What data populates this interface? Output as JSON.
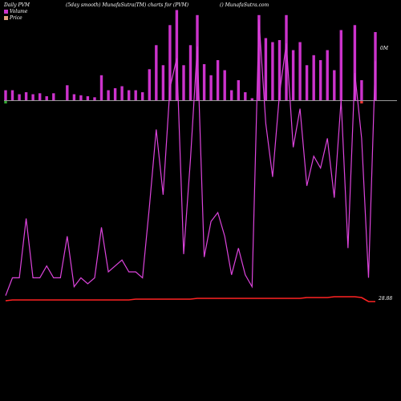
{
  "header": {
    "title": "Daily PVM",
    "subtitle": "(5day smooth) MunafaSutra(TM) charts for (PVM)",
    "site": "() MunafaSutra.com"
  },
  "legend": [
    {
      "label": "Volume",
      "color": "#cc33cc"
    },
    {
      "label": "Price",
      "color": "#e0a080"
    }
  ],
  "colors": {
    "volume_bar": "#cc33cc",
    "volume_line": "#dd44dd",
    "price_line": "#ff2222",
    "up_bar": "#33aa33",
    "down_bar": "#ee3333",
    "baseline": "#cccccc",
    "background": "#000000"
  },
  "chart_data": {
    "type": "bar",
    "volume_axis_label": "0M",
    "price_axis_label": "28.88",
    "bars": [
      10,
      10,
      6,
      8,
      6,
      7,
      4,
      7,
      0,
      15,
      6,
      5,
      4,
      3,
      25,
      10,
      12,
      14,
      10,
      10,
      8,
      31,
      55,
      35,
      75,
      90,
      35,
      55,
      85,
      36,
      25,
      40,
      30,
      10,
      20,
      8,
      2,
      85,
      62,
      58,
      60,
      85,
      50,
      58,
      35,
      45,
      40,
      50,
      30,
      70,
      0,
      75,
      20,
      0,
      68
    ],
    "volume": [
      2,
      8,
      8,
      28,
      8,
      8,
      12,
      8,
      8,
      22,
      5,
      8,
      6,
      8,
      25,
      10,
      12,
      14,
      10,
      10,
      8,
      32,
      58,
      36,
      72,
      82,
      16,
      48,
      86,
      15,
      27,
      30,
      22,
      9,
      18,
      9,
      5,
      95,
      60,
      42,
      70,
      87,
      52,
      65,
      39,
      49,
      45,
      55,
      35,
      68,
      18,
      77,
      55,
      8,
      81
    ],
    "price": [
      28.8,
      28.9,
      28.9,
      28.9,
      28.9,
      28.9,
      28.9,
      28.9,
      28.9,
      28.9,
      28.9,
      28.9,
      28.9,
      28.9,
      28.9,
      28.9,
      28.9,
      28.9,
      28.9,
      29.0,
      29.0,
      29.0,
      29.0,
      29.0,
      29.0,
      29.0,
      29.0,
      29.0,
      29.1,
      29.1,
      29.1,
      29.1,
      29.1,
      29.1,
      29.1,
      29.1,
      29.1,
      29.1,
      29.1,
      29.1,
      29.1,
      29.1,
      29.1,
      29.1,
      29.2,
      29.2,
      29.2,
      29.2,
      29.3,
      29.3,
      29.3,
      29.3,
      29.2,
      28.7,
      28.7
    ],
    "bar_direction": [
      1,
      0,
      0,
      0,
      0,
      0,
      0,
      0,
      0,
      0,
      0,
      0,
      0,
      0,
      0,
      0,
      0,
      0,
      0,
      0,
      0,
      0,
      0,
      0,
      0,
      0,
      0,
      0,
      0,
      0,
      0,
      0,
      0,
      0,
      0,
      0,
      0,
      0,
      0,
      0,
      0,
      0,
      0,
      0,
      0,
      0,
      0,
      0,
      0,
      0,
      0,
      0,
      -1,
      0,
      0
    ]
  }
}
